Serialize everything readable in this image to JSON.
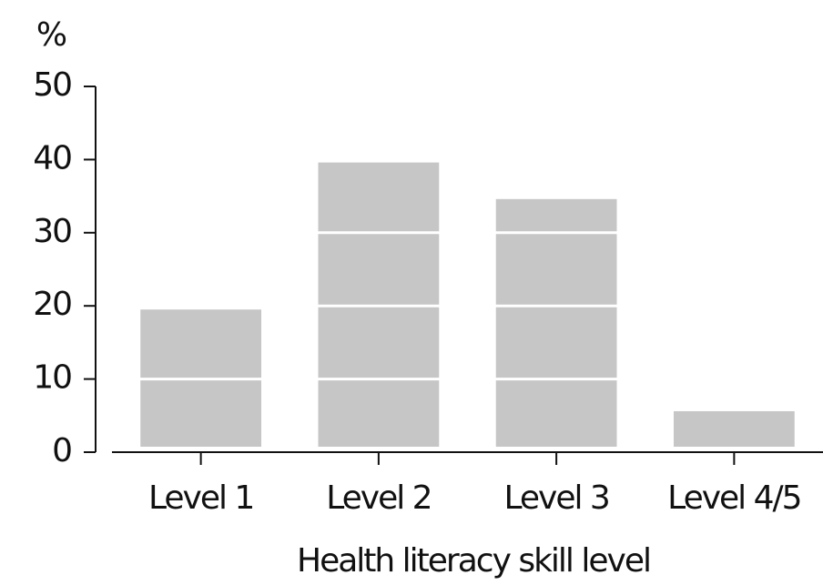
{
  "chart_data": {
    "type": "bar",
    "y_label": "%",
    "x_label": "Health literacy skill level",
    "categories": [
      "Level 1",
      "Level 2",
      "Level 3",
      "Level 4/5"
    ],
    "values": [
      19.5,
      39.6,
      34.6,
      5.6
    ],
    "color": "#c6c6c6",
    "ylim": [
      0,
      50
    ],
    "yticks": [
      0,
      10,
      20,
      30,
      40,
      50
    ],
    "grid": true,
    "grid_color": "#ffffff"
  }
}
